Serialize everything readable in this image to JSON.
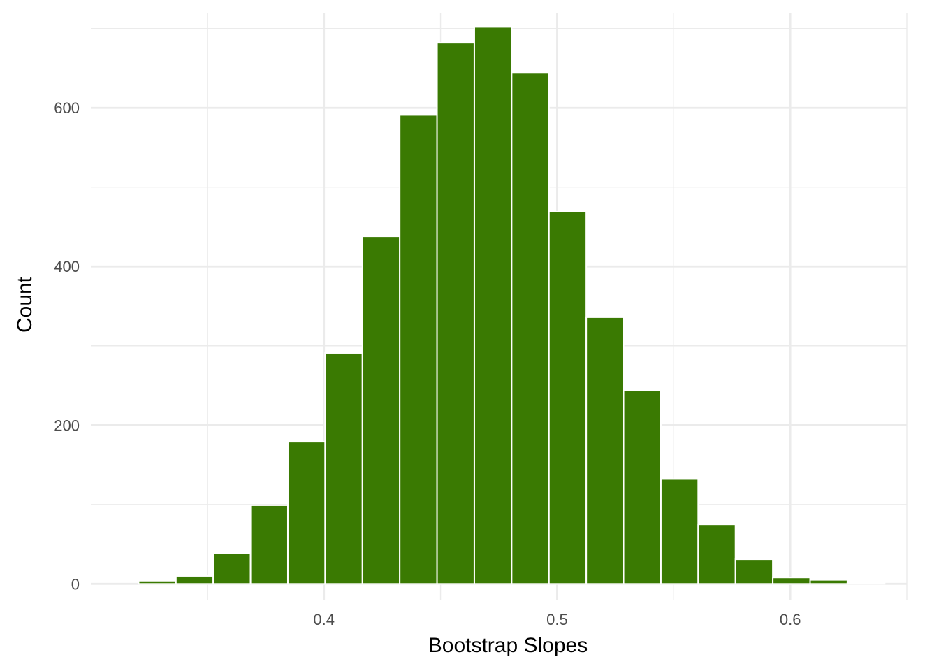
{
  "chart_data": {
    "type": "bar",
    "xlabel": "Bootstrap Slopes",
    "ylabel": "Count",
    "bar_color": "#3A7A02",
    "bar_outline_color": "#ffffff",
    "grid": true,
    "xlim": [
      0.3,
      0.65
    ],
    "ylim": [
      -20,
      720
    ],
    "x_ticks": [
      0.4,
      0.5,
      0.6
    ],
    "x_tick_labels": [
      "0.4",
      "0.5",
      "0.6"
    ],
    "x_minor_ticks": [
      0.35,
      0.45,
      0.55,
      0.65
    ],
    "y_ticks": [
      0,
      200,
      400,
      600
    ],
    "y_tick_labels": [
      "0",
      "200",
      "400",
      "600"
    ],
    "y_minor_ticks": [
      100,
      300,
      500,
      700
    ],
    "bins": [
      {
        "x0": 0.3205,
        "x1": 0.3365,
        "count": 4
      },
      {
        "x0": 0.3365,
        "x1": 0.3525,
        "count": 10
      },
      {
        "x0": 0.3525,
        "x1": 0.3685,
        "count": 39
      },
      {
        "x0": 0.3685,
        "x1": 0.3845,
        "count": 99
      },
      {
        "x0": 0.3845,
        "x1": 0.4005,
        "count": 179
      },
      {
        "x0": 0.4005,
        "x1": 0.4165,
        "count": 291
      },
      {
        "x0": 0.4165,
        "x1": 0.4325,
        "count": 438
      },
      {
        "x0": 0.4325,
        "x1": 0.4485,
        "count": 591
      },
      {
        "x0": 0.4485,
        "x1": 0.4645,
        "count": 682
      },
      {
        "x0": 0.4645,
        "x1": 0.4805,
        "count": 702
      },
      {
        "x0": 0.4805,
        "x1": 0.4965,
        "count": 644
      },
      {
        "x0": 0.4965,
        "x1": 0.5125,
        "count": 469
      },
      {
        "x0": 0.5125,
        "x1": 0.5285,
        "count": 336
      },
      {
        "x0": 0.5285,
        "x1": 0.5445,
        "count": 244
      },
      {
        "x0": 0.5445,
        "x1": 0.5605,
        "count": 132
      },
      {
        "x0": 0.5605,
        "x1": 0.5765,
        "count": 75
      },
      {
        "x0": 0.5765,
        "x1": 0.5925,
        "count": 31
      },
      {
        "x0": 0.5925,
        "x1": 0.6085,
        "count": 8
      },
      {
        "x0": 0.6085,
        "x1": 0.6245,
        "count": 5
      },
      {
        "x0": 0.6245,
        "x1": 0.6405,
        "count": 1
      }
    ]
  }
}
